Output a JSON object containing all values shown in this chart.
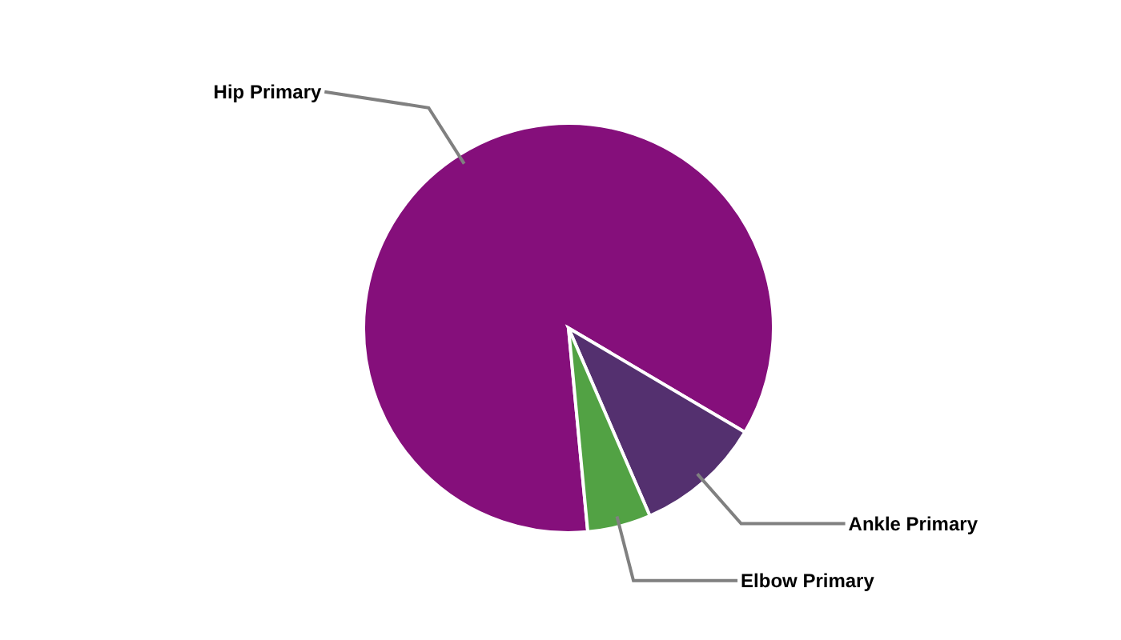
{
  "chart_data": {
    "type": "pie",
    "categories": [
      "Hip Primary",
      "Ankle Primary",
      "Elbow Primary"
    ],
    "values": [
      85,
      10,
      5
    ],
    "colors": [
      "#850f7b",
      "#54306f",
      "#52a244"
    ]
  }
}
